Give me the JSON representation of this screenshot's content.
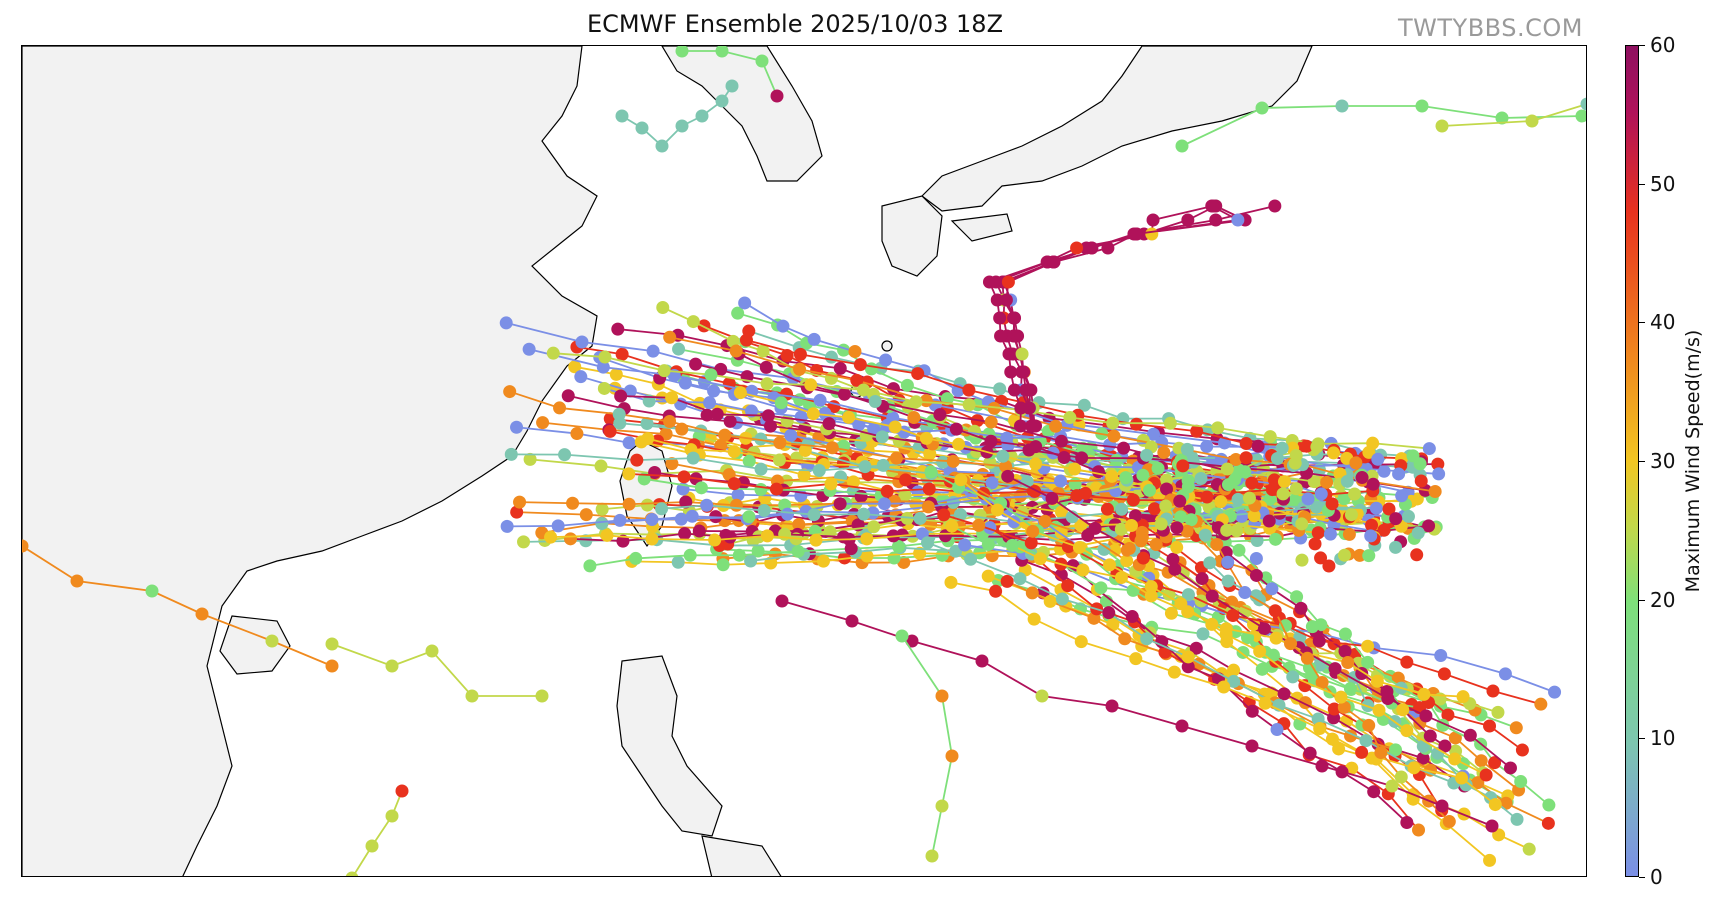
{
  "title": "ECMWF Ensemble 2025/10/03 18Z",
  "watermark": "TWTYBBS.COM",
  "colorbar": {
    "label": "Maximum Wind Speed(m/s)",
    "ticks": [
      "60",
      "50",
      "40",
      "30",
      "20",
      "10",
      "0"
    ],
    "range": [
      0,
      60
    ]
  },
  "colors": {
    "land": "#f2f2f2",
    "ocean": "#ffffff",
    "coastline": "#000000",
    "scale": [
      "#7b8fe6",
      "#7dc6b0",
      "#7ee07a",
      "#c2d84a",
      "#f2c622",
      "#f08a1e",
      "#e8321e",
      "#b0125a"
    ]
  }
}
